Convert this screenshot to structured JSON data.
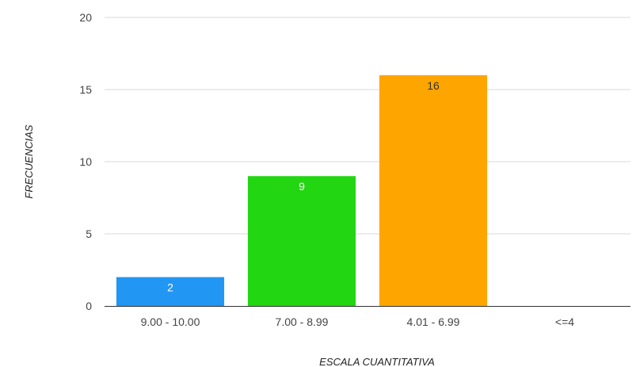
{
  "chart_data": {
    "type": "bar",
    "categories": [
      "9.00 - 10.00",
      "7.00 - 8.99",
      "4.01 - 6.99",
      "<=4"
    ],
    "values": [
      2,
      9,
      16,
      0
    ],
    "data_labels": [
      "2",
      "9",
      "16",
      ""
    ],
    "colors": [
      "#2196f3",
      "#22d611",
      "#ffa500",
      "#cccccc"
    ],
    "label_colors": [
      "#ffffff",
      "#ffffff",
      "#333333",
      "#333333"
    ],
    "xlabel": "ESCALA CUANTITATIVA",
    "ylabel": "FRECUENCIAS",
    "ylim": [
      0,
      20
    ],
    "yticks": [
      0,
      5,
      10,
      15,
      20
    ],
    "grid": true,
    "legend": "none"
  }
}
